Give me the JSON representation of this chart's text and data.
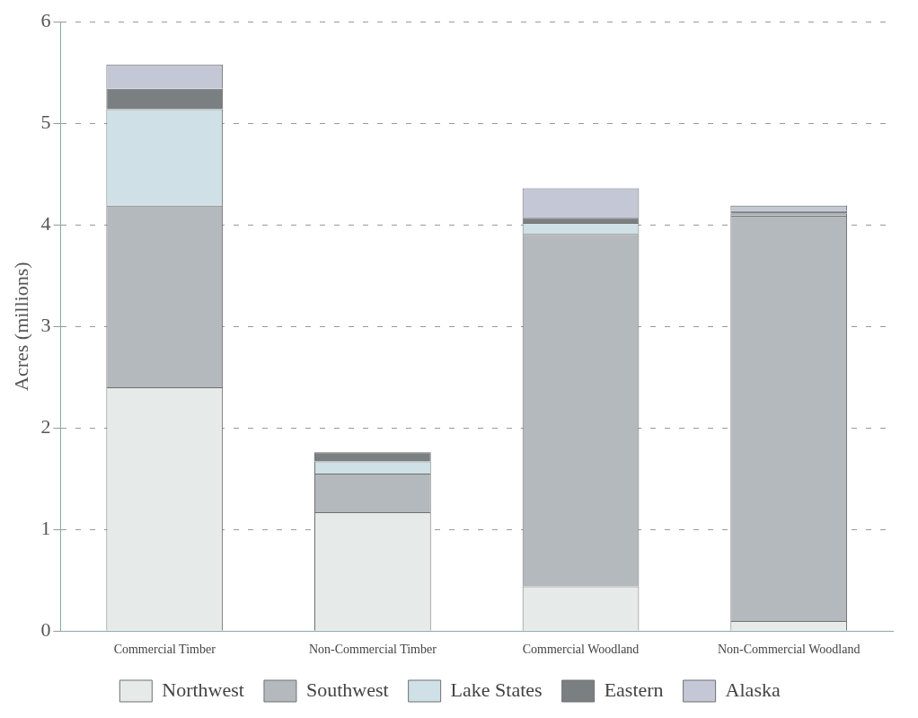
{
  "chart_data": {
    "type": "bar",
    "stacked": true,
    "ylabel": "Acres (millions)",
    "categories": [
      "Commercial Timber",
      "Non-Commercial Timber",
      "Commercial Woodland",
      "Non-Commercial Woodland"
    ],
    "series": [
      {
        "name": "Northwest",
        "color": "#e6eae8",
        "values": [
          2.4,
          1.17,
          0.44,
          0.1
        ]
      },
      {
        "name": "Southwest",
        "color": "#b4b9bd",
        "values": [
          1.79,
          0.38,
          3.47,
          3.99
        ]
      },
      {
        "name": "Lake States",
        "color": "#cfe0e6",
        "values": [
          0.95,
          0.12,
          0.11,
          0.02
        ]
      },
      {
        "name": "Eastern",
        "color": "#7a7f82",
        "values": [
          0.2,
          0.09,
          0.05,
          0.03
        ]
      },
      {
        "name": "Alaska",
        "color": "#c4c8d6",
        "values": [
          0.24,
          0,
          0.29,
          0.05
        ]
      }
    ],
    "ylim": [
      0,
      6
    ],
    "yticks": [
      0,
      1,
      2,
      3,
      4,
      5,
      6
    ],
    "grid": "y",
    "legend": "bottom"
  }
}
